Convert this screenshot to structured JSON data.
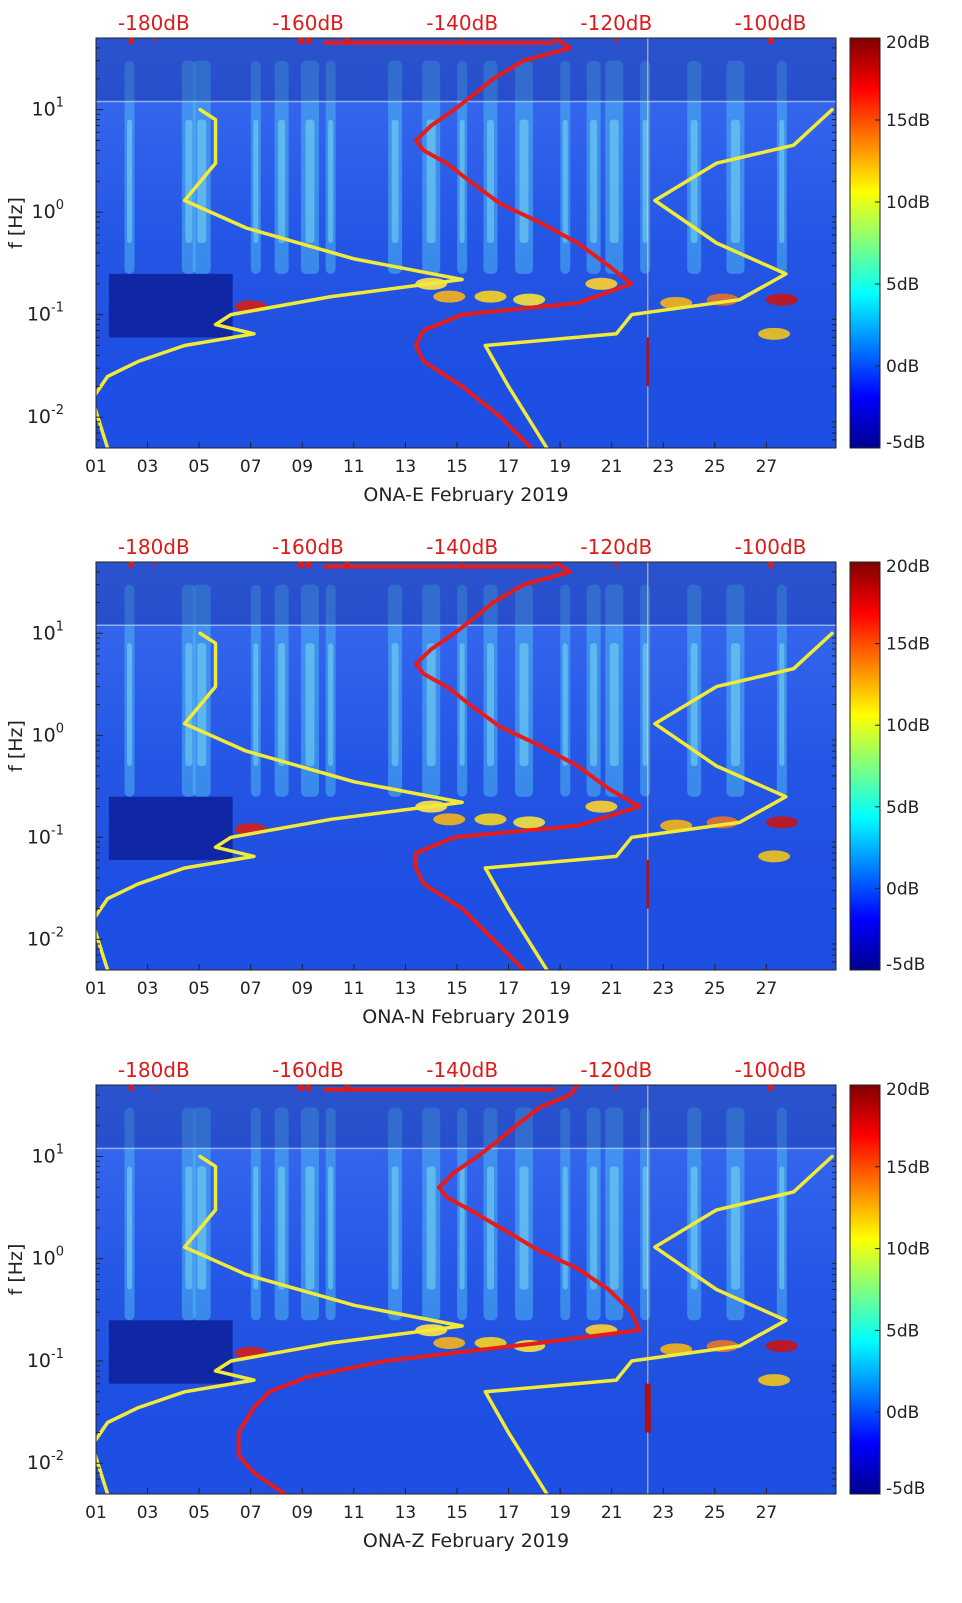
{
  "colors": {
    "spectrogram_base": "#1f4fe0",
    "noise_model": "#e61c1c",
    "reference_model": "#f2ea38",
    "top_axis_text": "#dd1a1a",
    "axis_text": "#222222"
  },
  "chart_data": [
    {
      "type": "heatmap",
      "station": "ONA-E",
      "xlabel": "ONA-E February 2019",
      "ylabel": "f [Hz]",
      "x_ticks": [
        "01",
        "03",
        "05",
        "07",
        "09",
        "11",
        "13",
        "15",
        "17",
        "19",
        "21",
        "23",
        "25",
        "27"
      ],
      "x_tick_days": [
        1,
        3,
        5,
        7,
        9,
        11,
        13,
        15,
        17,
        19,
        21,
        23,
        25,
        27
      ],
      "xlim_days": [
        1,
        29.7
      ],
      "y_scale": "log",
      "ylim_hz": [
        0.005,
        50
      ],
      "y_ticks": [
        {
          "value": 0.01,
          "base": "10",
          "exp": "-2"
        },
        {
          "value": 0.1,
          "base": "10",
          "exp": "-1"
        },
        {
          "value": 1,
          "base": "10",
          "exp": "0"
        },
        {
          "value": 10,
          "base": "10",
          "exp": "1"
        }
      ],
      "top_axis_ticks": [
        "-180dB",
        "-160dB",
        "-140dB",
        "-120dB",
        "-100dB"
      ],
      "top_axis_values_db": [
        -180,
        -160,
        -140,
        -120,
        -100
      ],
      "top_axis_range_db": [
        -187.5,
        -91.5
      ],
      "colorbar_ticks": [
        "20dB",
        "15dB",
        "10dB",
        "5dB",
        "0dB",
        "-5dB"
      ],
      "colorbar_values_db": [
        20,
        15,
        10,
        5,
        0,
        -5
      ],
      "colorbar_range_db": [
        -5,
        20
      ],
      "series": [
        {
          "name": "noise-model-red",
          "color": "#e61c1c",
          "points": [
            [
              -128,
              50
            ],
            [
              -126,
              40
            ],
            [
              -132,
              30
            ],
            [
              -136,
              20
            ],
            [
              -138,
              15
            ],
            [
              -141,
              10
            ],
            [
              -144,
              7
            ],
            [
              -146,
              5
            ],
            [
              -145,
              4
            ],
            [
              -142,
              3
            ],
            [
              -139,
              2
            ],
            [
              -135,
              1.2
            ],
            [
              -130,
              0.8
            ],
            [
              -125,
              0.5
            ],
            [
              -121,
              0.3
            ],
            [
              -118,
              0.2
            ],
            [
              -125,
              0.13
            ],
            [
              -140,
              0.1
            ],
            [
              -145,
              0.07
            ],
            [
              -146,
              0.05
            ],
            [
              -145,
              0.035
            ],
            [
              -140,
              0.02
            ],
            [
              -135,
              0.01
            ],
            [
              -131,
              0.005
            ]
          ]
        },
        {
          "name": "reference-model-yellow",
          "color": "#f2ea38",
          "points": [
            [
              -174,
              10
            ],
            [
              -172,
              8
            ],
            [
              -172,
              5
            ],
            [
              -172,
              3
            ],
            [
              -176,
              1.3
            ],
            [
              -168,
              0.7
            ],
            [
              -154,
              0.35
            ],
            [
              -140,
              0.22
            ],
            [
              -157,
              0.15
            ],
            [
              -170,
              0.1
            ],
            [
              -172,
              0.08
            ],
            [
              -167,
              0.065
            ],
            [
              -176,
              0.05
            ],
            [
              -182,
              0.035
            ],
            [
              -186,
              0.025
            ],
            [
              -188,
              0.015
            ],
            [
              -186,
              0.005
            ]
          ]
        },
        {
          "name": "reference-model-right-yellow",
          "color": "#f2ea38",
          "points": [
            [
              -92,
              10
            ],
            [
              -97,
              4.5
            ],
            [
              -107,
              3
            ],
            [
              -115,
              1.3
            ],
            [
              -107,
              0.5
            ],
            [
              -98,
              0.25
            ],
            [
              -104,
              0.14
            ],
            [
              -118,
              0.1
            ],
            [
              -120,
              0.065
            ],
            [
              -137,
              0.05
            ],
            [
              -134,
              0.02
            ],
            [
              -129,
              0.005
            ]
          ]
        }
      ]
    },
    {
      "type": "heatmap",
      "station": "ONA-N",
      "xlabel": "ONA-N February 2019",
      "ylabel": "f [Hz]",
      "x_ticks": [
        "01",
        "03",
        "05",
        "07",
        "09",
        "11",
        "13",
        "15",
        "17",
        "19",
        "21",
        "23",
        "25",
        "27"
      ],
      "x_tick_days": [
        1,
        3,
        5,
        7,
        9,
        11,
        13,
        15,
        17,
        19,
        21,
        23,
        25,
        27
      ],
      "xlim_days": [
        1,
        29.7
      ],
      "y_scale": "log",
      "ylim_hz": [
        0.005,
        50
      ],
      "y_ticks": [
        {
          "value": 0.01,
          "base": "10",
          "exp": "-2"
        },
        {
          "value": 0.1,
          "base": "10",
          "exp": "-1"
        },
        {
          "value": 1,
          "base": "10",
          "exp": "0"
        },
        {
          "value": 10,
          "base": "10",
          "exp": "1"
        }
      ],
      "top_axis_ticks": [
        "-180dB",
        "-160dB",
        "-140dB",
        "-120dB",
        "-100dB"
      ],
      "top_axis_values_db": [
        -180,
        -160,
        -140,
        -120,
        -100
      ],
      "top_axis_range_db": [
        -187.5,
        -91.5
      ],
      "colorbar_ticks": [
        "20dB",
        "15dB",
        "10dB",
        "5dB",
        "0dB",
        "-5dB"
      ],
      "colorbar_values_db": [
        20,
        15,
        10,
        5,
        0,
        -5
      ],
      "colorbar_range_db": [
        -5,
        20
      ],
      "series": [
        {
          "name": "noise-model-red",
          "color": "#e61c1c",
          "points": [
            [
              -128,
              50
            ],
            [
              -126,
              40
            ],
            [
              -132,
              30
            ],
            [
              -136,
              20
            ],
            [
              -138,
              15
            ],
            [
              -141,
              10
            ],
            [
              -144,
              7
            ],
            [
              -146,
              5
            ],
            [
              -145,
              4
            ],
            [
              -142,
              3
            ],
            [
              -139,
              2
            ],
            [
              -135,
              1.2
            ],
            [
              -130,
              0.8
            ],
            [
              -125,
              0.5
            ],
            [
              -121,
              0.3
            ],
            [
              -117,
              0.2
            ],
            [
              -125,
              0.13
            ],
            [
              -141,
              0.1
            ],
            [
              -146,
              0.07
            ],
            [
              -146,
              0.05
            ],
            [
              -145,
              0.035
            ],
            [
              -140,
              0.02
            ],
            [
              -136,
              0.01
            ],
            [
              -132,
              0.005
            ]
          ]
        },
        {
          "name": "reference-model-yellow",
          "color": "#f2ea38",
          "points": [
            [
              -174,
              10
            ],
            [
              -172,
              8
            ],
            [
              -172,
              5
            ],
            [
              -172,
              3
            ],
            [
              -176,
              1.3
            ],
            [
              -168,
              0.7
            ],
            [
              -154,
              0.35
            ],
            [
              -140,
              0.22
            ],
            [
              -157,
              0.15
            ],
            [
              -170,
              0.1
            ],
            [
              -172,
              0.08
            ],
            [
              -167,
              0.065
            ],
            [
              -176,
              0.05
            ],
            [
              -182,
              0.035
            ],
            [
              -186,
              0.025
            ],
            [
              -188,
              0.015
            ],
            [
              -186,
              0.005
            ]
          ]
        },
        {
          "name": "reference-model-right-yellow",
          "color": "#f2ea38",
          "points": [
            [
              -92,
              10
            ],
            [
              -97,
              4.5
            ],
            [
              -107,
              3
            ],
            [
              -115,
              1.3
            ],
            [
              -107,
              0.5
            ],
            [
              -98,
              0.25
            ],
            [
              -104,
              0.14
            ],
            [
              -118,
              0.1
            ],
            [
              -120,
              0.065
            ],
            [
              -137,
              0.05
            ],
            [
              -134,
              0.02
            ],
            [
              -129,
              0.005
            ]
          ]
        }
      ]
    },
    {
      "type": "heatmap",
      "station": "ONA-Z",
      "xlabel": "ONA-Z February 2019",
      "ylabel": "f [Hz]",
      "x_ticks": [
        "01",
        "03",
        "05",
        "07",
        "09",
        "11",
        "13",
        "15",
        "17",
        "19",
        "21",
        "23",
        "25",
        "27"
      ],
      "x_tick_days": [
        1,
        3,
        5,
        7,
        9,
        11,
        13,
        15,
        17,
        19,
        21,
        23,
        25,
        27
      ],
      "xlim_days": [
        1,
        29.7
      ],
      "y_scale": "log",
      "ylim_hz": [
        0.005,
        50
      ],
      "y_ticks": [
        {
          "value": 0.01,
          "base": "10",
          "exp": "-2"
        },
        {
          "value": 0.1,
          "base": "10",
          "exp": "-1"
        },
        {
          "value": 1,
          "base": "10",
          "exp": "0"
        },
        {
          "value": 10,
          "base": "10",
          "exp": "1"
        }
      ],
      "top_axis_ticks": [
        "-180dB",
        "-160dB",
        "-140dB",
        "-120dB",
        "-100dB"
      ],
      "top_axis_values_db": [
        -180,
        -160,
        -140,
        -120,
        -100
      ],
      "top_axis_range_db": [
        -187.5,
        -91.5
      ],
      "colorbar_ticks": [
        "20dB",
        "15dB",
        "10dB",
        "5dB",
        "0dB",
        "-5dB"
      ],
      "colorbar_values_db": [
        20,
        15,
        10,
        5,
        0,
        -5
      ],
      "colorbar_range_db": [
        -5,
        20
      ],
      "series": [
        {
          "name": "noise-model-red",
          "color": "#e61c1c",
          "points": [
            [
              -125,
              50
            ],
            [
              -126,
              40
            ],
            [
              -130,
              30
            ],
            [
              -133,
              20
            ],
            [
              -135,
              15
            ],
            [
              -138,
              10
            ],
            [
              -141,
              7
            ],
            [
              -143,
              5
            ],
            [
              -142,
              4
            ],
            [
              -139,
              3
            ],
            [
              -135,
              2
            ],
            [
              -130,
              1.2
            ],
            [
              -125,
              0.8
            ],
            [
              -121,
              0.5
            ],
            [
              -118,
              0.3
            ],
            [
              -117,
              0.2
            ],
            [
              -130,
              0.15
            ],
            [
              -150,
              0.1
            ],
            [
              -160,
              0.07
            ],
            [
              -165,
              0.05
            ],
            [
              -167,
              0.035
            ],
            [
              -169,
              0.02
            ],
            [
              -169,
              0.012
            ],
            [
              -167,
              0.008
            ],
            [
              -163,
              0.005
            ]
          ]
        },
        {
          "name": "reference-model-yellow",
          "color": "#f2ea38",
          "points": [
            [
              -174,
              10
            ],
            [
              -172,
              8
            ],
            [
              -172,
              5
            ],
            [
              -172,
              3
            ],
            [
              -176,
              1.3
            ],
            [
              -168,
              0.7
            ],
            [
              -154,
              0.35
            ],
            [
              -140,
              0.22
            ],
            [
              -157,
              0.15
            ],
            [
              -170,
              0.1
            ],
            [
              -172,
              0.08
            ],
            [
              -167,
              0.065
            ],
            [
              -176,
              0.05
            ],
            [
              -182,
              0.035
            ],
            [
              -186,
              0.025
            ],
            [
              -188,
              0.015
            ],
            [
              -186,
              0.005
            ]
          ]
        },
        {
          "name": "reference-model-right-yellow",
          "color": "#f2ea38",
          "points": [
            [
              -92,
              10
            ],
            [
              -97,
              4.5
            ],
            [
              -107,
              3
            ],
            [
              -115,
              1.3
            ],
            [
              -107,
              0.5
            ],
            [
              -98,
              0.25
            ],
            [
              -104,
              0.14
            ],
            [
              -118,
              0.1
            ],
            [
              -120,
              0.065
            ],
            [
              -137,
              0.05
            ],
            [
              -134,
              0.02
            ],
            [
              -129,
              0.005
            ]
          ]
        }
      ]
    }
  ]
}
